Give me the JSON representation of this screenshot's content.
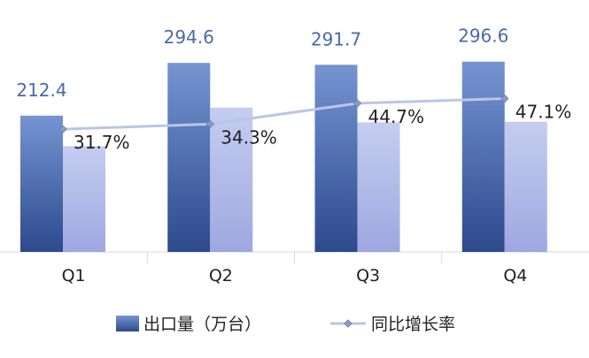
{
  "chart_data": {
    "type": "bar",
    "categories": [
      "Q1",
      "Q2",
      "Q3",
      "Q4"
    ],
    "series": [
      {
        "name": "出口量（万台）",
        "kind": "bar",
        "values": [
          212.4,
          294.6,
          291.7,
          296.6
        ],
        "value_labels": [
          "212.4",
          "294.6",
          "291.7",
          "296.6"
        ],
        "color": "#3d5fa8"
      },
      {
        "name": "",
        "kind": "bar",
        "values": [
          165,
          225,
          202,
          203
        ],
        "color": "#aab3e6"
      },
      {
        "name": "同比增长率",
        "kind": "line",
        "values": [
          31.7,
          34.3,
          44.7,
          47.1
        ],
        "value_labels": [
          "31.7%",
          "34.3%",
          "44.7%",
          "47.1%"
        ],
        "color": "#b9c6e6",
        "marker_color": "#8a9cc6"
      }
    ],
    "ylim": [
      0,
      310
    ],
    "y2lim": [
      -30,
      70
    ],
    "grid": false,
    "legend": "bottom"
  }
}
